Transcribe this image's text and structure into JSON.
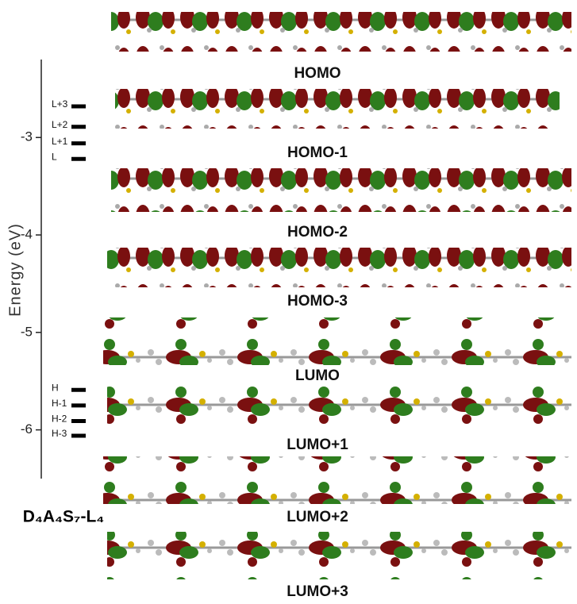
{
  "chart_data": {
    "type": "levels",
    "ylabel": "Energy (eV)",
    "ylim": [
      -6.5,
      -2.2
    ],
    "yticks": [
      -3,
      -4,
      -5,
      -6
    ],
    "levels": [
      {
        "label": "L+3",
        "value": -2.68
      },
      {
        "label": "L+2",
        "value": -2.89
      },
      {
        "label": "L+1",
        "value": -3.06
      },
      {
        "label": "L",
        "value": -3.22
      },
      {
        "label": "H",
        "value": -5.59
      },
      {
        "label": "H-1",
        "value": -5.75
      },
      {
        "label": "H-2",
        "value": -5.91
      },
      {
        "label": "H-3",
        "value": -6.06
      }
    ],
    "compound": "D₄A₄S₇-L₄",
    "orbitals": [
      "HOMO",
      "HOMO-1",
      "HOMO-2",
      "HOMO-3",
      "LUMO",
      "LUMO+1",
      "LUMO+2",
      "LUMO+3"
    ]
  }
}
